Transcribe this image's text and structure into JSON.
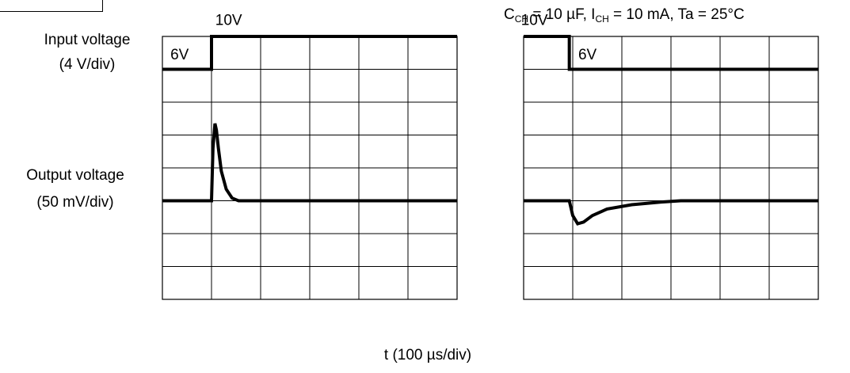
{
  "labels": {
    "input_voltage": "Input voltage",
    "input_scale": "(4 V/div)",
    "output_voltage": "Output voltage",
    "output_scale": "(50 mV/div)",
    "x_axis": "t (100 µs/div)",
    "conditions": {
      "c_sym": "C",
      "c_sub": "CH",
      "c_val": " = 10 µF, I",
      "i_sub": "CH",
      "i_val": " = 10 mA, Ta = 25°C"
    }
  },
  "chart_data": [
    {
      "type": "line",
      "title": "",
      "x_unit": "div (100 µs/div)",
      "xlim": [
        0,
        6
      ],
      "ylim": [
        0,
        8
      ],
      "grid": true,
      "series": [
        {
          "role": "input",
          "x": [
            0,
            1,
            1,
            6
          ],
          "y": [
            7,
            7,
            8,
            8
          ],
          "step_labels": [
            {
              "text": "6V",
              "x": 0.35,
              "y": 7.3
            },
            {
              "text": "10V",
              "x": 1.35,
              "y": 8.35
            }
          ]
        },
        {
          "role": "output",
          "x": [
            0,
            1.0,
            1.03,
            1.07,
            1.1,
            1.14,
            1.2,
            1.3,
            1.42,
            1.55,
            6
          ],
          "y": [
            3,
            3,
            4.6,
            5.35,
            5.15,
            4.6,
            3.9,
            3.35,
            3.08,
            3.0,
            3
          ]
        }
      ]
    },
    {
      "type": "line",
      "title": "",
      "x_unit": "div (100 µs/div)",
      "xlim": [
        0,
        6
      ],
      "ylim": [
        0,
        8
      ],
      "grid": true,
      "series": [
        {
          "role": "input",
          "x": [
            0,
            0.93,
            0.93,
            6
          ],
          "y": [
            8,
            8,
            7,
            7
          ],
          "step_labels": [
            {
              "text": "10V",
              "x": 0.22,
              "y": 8.35
            },
            {
              "text": "6V",
              "x": 1.3,
              "y": 7.3
            }
          ]
        },
        {
          "role": "output",
          "x": [
            0,
            0.93,
            1.0,
            1.1,
            1.22,
            1.4,
            1.7,
            2.2,
            2.8,
            3.2,
            6
          ],
          "y": [
            3,
            3,
            2.55,
            2.3,
            2.35,
            2.55,
            2.75,
            2.88,
            2.96,
            3,
            3
          ]
        }
      ]
    }
  ]
}
